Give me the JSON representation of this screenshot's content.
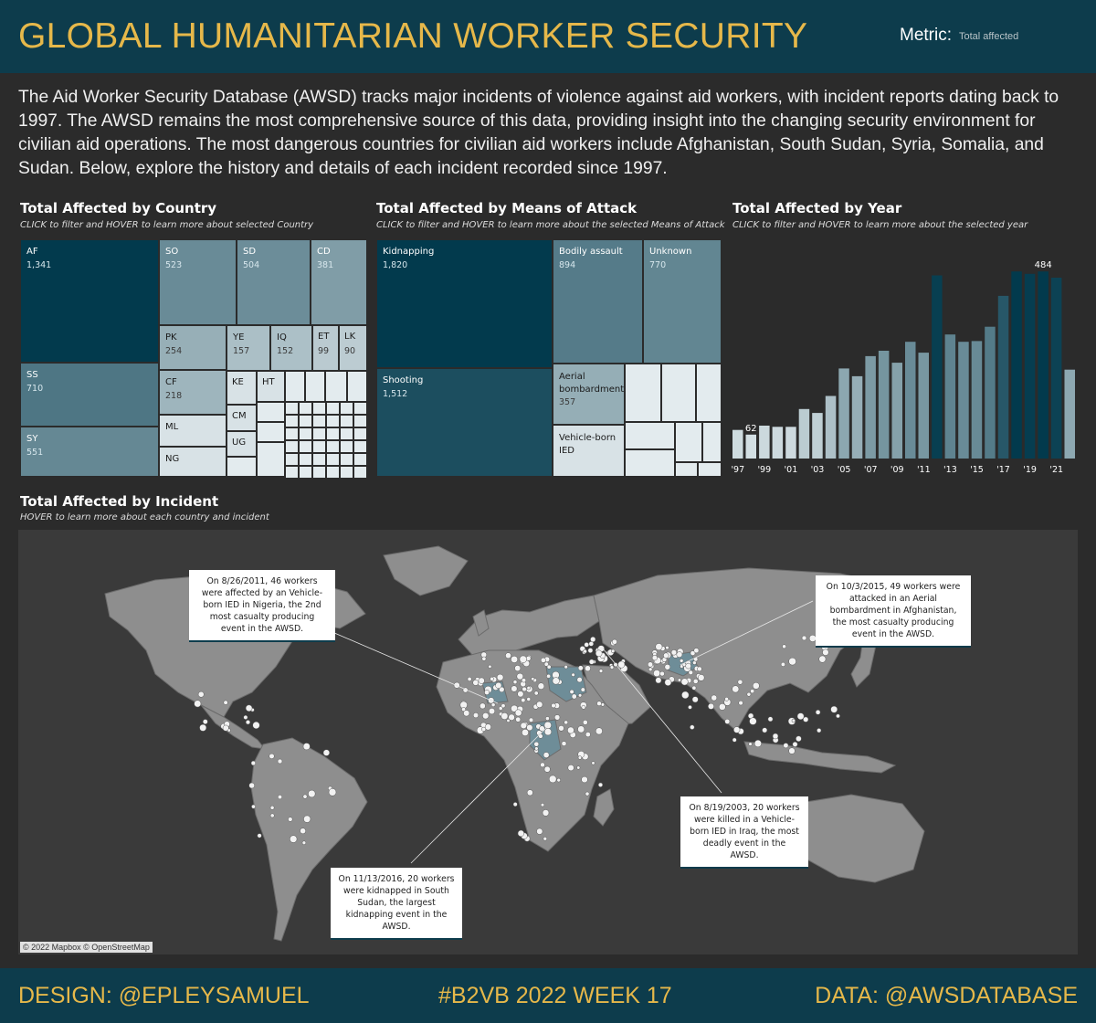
{
  "header": {
    "title": "GLOBAL HUMANITARIAN WORKER SECURITY",
    "metric_label": "Metric:",
    "metric_value": "Total affected"
  },
  "intro": "The Aid Worker Security Database (AWSD) tracks major incidents of violence against aid workers, with incident reports dating back to 1997. The AWSD remains the most comprehensive source of this data, providing insight into the changing security environment for civilian aid operations. The most dangerous countries for civilian aid workers include Afghanistan, South Sudan, Syria, Somalia, and Sudan. Below, explore the history and details of each incident recorded since 1997.",
  "country_panel": {
    "title": "Total Affected by Country",
    "subtitle": "CLICK to filter and HOVER to learn more about selected Country"
  },
  "means_panel": {
    "title": "Total Affected by Means of Attack",
    "subtitle": "CLICK to filter and HOVER to learn more about the selected Means of Attack"
  },
  "year_panel": {
    "title": "Total Affected by Year",
    "subtitle": "CLICK to filter and HOVER to learn more about the selected year"
  },
  "incident_panel": {
    "title": "Total Affected by Incident",
    "subtitle": "HOVER to learn more about each country and incident",
    "attribution": "© 2022 Mapbox © OpenStreetMap"
  },
  "callouts": {
    "nigeria": "On 8/26/2011, 46 workers were affected by an Vehicle-born IED in Nigeria, the 2nd most casualty producing event in the AWSD.",
    "afghanistan": "On 10/3/2015, 49 workers were attacked in an Aerial bombardment in Afghanistan, the most casualty producing event in the AWSD.",
    "iraq": "On 8/19/2003, 20 workers were killed in a Vehicle-born IED in Iraq, the most deadly event in the AWSD.",
    "south_sudan": "On 11/13/2016, 20 workers were kidnapped in South Sudan, the largest kidnapping event in the AWSD."
  },
  "colors": {
    "header_bg": "#0d3c4c",
    "accent": "#e6b84a",
    "background": "#2b2b2b",
    "scale_dark": "#023a4d",
    "scale_light": "#e3ebee"
  },
  "footer": {
    "design": "DESIGN: @EPLEYSAMUEL",
    "week": "#B2VB 2022 WEEK 17",
    "data": "DATA: @AWSDATABASE"
  },
  "chart_data": [
    {
      "type": "treemap",
      "title": "Total Affected by Country",
      "labeled_items": [
        {
          "label": "AF",
          "value": 1341
        },
        {
          "label": "SS",
          "value": 710
        },
        {
          "label": "SY",
          "value": 551
        },
        {
          "label": "SO",
          "value": 523
        },
        {
          "label": "SD",
          "value": 504
        },
        {
          "label": "CD",
          "value": 381
        },
        {
          "label": "PK",
          "value": 254
        },
        {
          "label": "CF",
          "value": 218
        },
        {
          "label": "YE",
          "value": 157
        },
        {
          "label": "IQ",
          "value": 152
        },
        {
          "label": "ET",
          "value": 99
        },
        {
          "label": "LK",
          "value": 90
        }
      ],
      "label_only_items": [
        "ML",
        "NG",
        "KE",
        "HT",
        "CM",
        "UG"
      ]
    },
    {
      "type": "treemap",
      "title": "Total Affected by Means of Attack",
      "labeled_items": [
        {
          "label": "Kidnapping",
          "value": 1820
        },
        {
          "label": "Shooting",
          "value": 1512
        },
        {
          "label": "Bodily assault",
          "value": 894
        },
        {
          "label": "Unknown",
          "value": 770
        },
        {
          "label": "Aerial bombardment",
          "value": 357
        }
      ],
      "label_only_items": [
        "Vehicle-born IED"
      ]
    },
    {
      "type": "bar",
      "title": "Total Affected by Year",
      "categories": [
        "'97",
        "'98",
        "'99",
        "'00",
        "'01",
        "'02",
        "'03",
        "'04",
        "'05",
        "'06",
        "'07",
        "'08",
        "'09",
        "'10",
        "'11",
        "'12",
        "'13",
        "'14",
        "'15",
        "'16",
        "'17",
        "'18",
        "'19",
        "'20",
        "'21",
        "'22"
      ],
      "tick_labels": [
        "'97",
        "'99",
        "'01",
        "'03",
        "'05",
        "'07",
        "'09",
        "'11",
        "'13",
        "'15",
        "'17",
        "'19",
        "'21"
      ],
      "values": [
        74,
        62,
        85,
        82,
        82,
        128,
        118,
        162,
        233,
        213,
        265,
        279,
        248,
        302,
        274,
        474,
        321,
        302,
        304,
        341,
        421,
        484,
        478,
        484,
        468,
        230
      ],
      "labeled_points": {
        "'98": 62,
        "'20": 484
      },
      "ylim": [
        0,
        520
      ],
      "color_scale": [
        "#e3ebee",
        "#023a4d"
      ],
      "grid": false
    }
  ]
}
